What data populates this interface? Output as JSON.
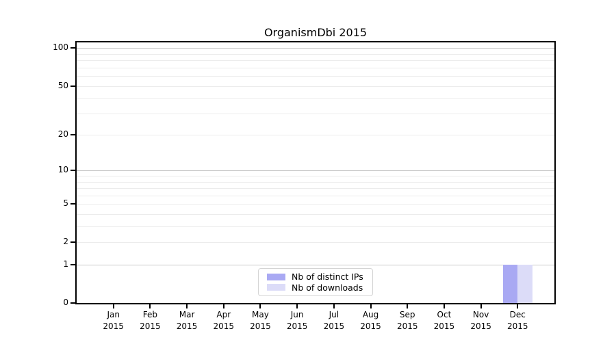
{
  "chart_data": {
    "type": "bar",
    "title": "OrganismDbi 2015",
    "categories": [
      "Jan",
      "Feb",
      "Mar",
      "Apr",
      "May",
      "Jun",
      "Jul",
      "Aug",
      "Sep",
      "Oct",
      "Nov",
      "Dec"
    ],
    "category_year": "2015",
    "series": [
      {
        "name": "Nb of distinct IPs",
        "color": "#a9a9f3",
        "values": [
          0,
          0,
          0,
          0,
          0,
          0,
          0,
          0,
          0,
          0,
          0,
          1
        ]
      },
      {
        "name": "Nb of downloads",
        "color": "#dcdcf8",
        "values": [
          0,
          0,
          0,
          0,
          0,
          0,
          0,
          0,
          0,
          0,
          0,
          1
        ]
      }
    ],
    "yticks": [
      0,
      1,
      2,
      5,
      10,
      20,
      50,
      100
    ],
    "major_gridlines": [
      1,
      10,
      100
    ],
    "minor_gridlines": [
      2,
      3,
      4,
      5,
      6,
      7,
      8,
      9,
      20,
      30,
      40,
      50,
      60,
      70,
      80,
      90
    ],
    "yscale": "log(1+y)",
    "ylim": [
      0,
      111
    ],
    "xlabel": "",
    "ylabel": "",
    "grid": true,
    "legend_position": "lower center",
    "colors": {
      "grid_major": "#c7c7c7",
      "grid_minor": "#ececec",
      "axis": "#000000",
      "legend_border": "#d4d4d4",
      "background": "#ffffff",
      "text": "#000000"
    }
  }
}
